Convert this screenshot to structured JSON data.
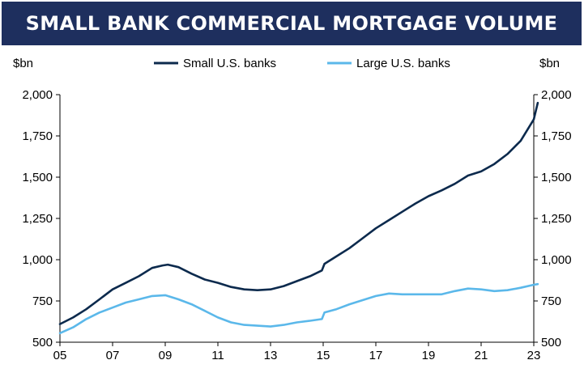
{
  "banner": {
    "title": "SMALL BANK COMMERCIAL MORTGAGE VOLUME"
  },
  "chart_data": {
    "type": "line",
    "title": "SMALL BANK COMMERCIAL MORTGAGE VOLUME",
    "ylabel_left": "$bn",
    "ylabel_right": "$bn",
    "xlim": [
      2005,
      2023
    ],
    "ylim": [
      500,
      2000
    ],
    "xticks": [
      2005,
      2007,
      2009,
      2011,
      2013,
      2015,
      2017,
      2019,
      2021,
      2023
    ],
    "xtick_labels": [
      "05",
      "07",
      "09",
      "11",
      "13",
      "15",
      "17",
      "19",
      "21",
      "23"
    ],
    "yticks": [
      500,
      750,
      1000,
      1250,
      1500,
      1750,
      2000
    ],
    "ytick_labels": [
      "500",
      "750",
      "1,000",
      "1,250",
      "1,500",
      "1,750",
      "2,000"
    ],
    "grid": false,
    "legend_position": "top-center",
    "series": [
      {
        "name": "Small U.S. banks",
        "color": "#0c2a4d",
        "points": [
          [
            2005.0,
            610
          ],
          [
            2005.5,
            650
          ],
          [
            2006.0,
            700
          ],
          [
            2006.5,
            760
          ],
          [
            2007.0,
            820
          ],
          [
            2007.5,
            860
          ],
          [
            2008.0,
            900
          ],
          [
            2008.5,
            950
          ],
          [
            2008.9,
            965
          ],
          [
            2009.1,
            970
          ],
          [
            2009.5,
            955
          ],
          [
            2010.0,
            915
          ],
          [
            2010.5,
            880
          ],
          [
            2011.0,
            860
          ],
          [
            2011.5,
            835
          ],
          [
            2012.0,
            820
          ],
          [
            2012.5,
            815
          ],
          [
            2013.0,
            820
          ],
          [
            2013.5,
            840
          ],
          [
            2014.0,
            870
          ],
          [
            2014.5,
            900
          ],
          [
            2014.95,
            935
          ],
          [
            2015.05,
            975
          ],
          [
            2015.5,
            1020
          ],
          [
            2016.0,
            1070
          ],
          [
            2016.5,
            1130
          ],
          [
            2017.0,
            1190
          ],
          [
            2017.5,
            1240
          ],
          [
            2018.0,
            1290
          ],
          [
            2018.5,
            1340
          ],
          [
            2019.0,
            1385
          ],
          [
            2019.5,
            1420
          ],
          [
            2020.0,
            1460
          ],
          [
            2020.5,
            1510
          ],
          [
            2021.0,
            1535
          ],
          [
            2021.5,
            1580
          ],
          [
            2022.0,
            1640
          ],
          [
            2022.5,
            1720
          ],
          [
            2023.0,
            1850
          ],
          [
            2023.15,
            1950
          ]
        ]
      },
      {
        "name": "Large U.S. banks",
        "color": "#5bb8ea",
        "points": [
          [
            2005.0,
            555
          ],
          [
            2005.5,
            590
          ],
          [
            2006.0,
            640
          ],
          [
            2006.5,
            680
          ],
          [
            2007.0,
            710
          ],
          [
            2007.5,
            740
          ],
          [
            2008.0,
            760
          ],
          [
            2008.5,
            780
          ],
          [
            2009.0,
            785
          ],
          [
            2009.5,
            760
          ],
          [
            2010.0,
            730
          ],
          [
            2010.5,
            690
          ],
          [
            2011.0,
            650
          ],
          [
            2011.5,
            620
          ],
          [
            2012.0,
            605
          ],
          [
            2012.5,
            600
          ],
          [
            2013.0,
            595
          ],
          [
            2013.5,
            605
          ],
          [
            2014.0,
            620
          ],
          [
            2014.5,
            630
          ],
          [
            2014.95,
            640
          ],
          [
            2015.05,
            680
          ],
          [
            2015.5,
            700
          ],
          [
            2016.0,
            730
          ],
          [
            2016.5,
            755
          ],
          [
            2017.0,
            780
          ],
          [
            2017.5,
            795
          ],
          [
            2018.0,
            790
          ],
          [
            2018.5,
            790
          ],
          [
            2019.0,
            790
          ],
          [
            2019.5,
            790
          ],
          [
            2020.0,
            810
          ],
          [
            2020.5,
            825
          ],
          [
            2021.0,
            820
          ],
          [
            2021.5,
            810
          ],
          [
            2022.0,
            815
          ],
          [
            2022.5,
            830
          ],
          [
            2023.0,
            848
          ],
          [
            2023.15,
            852
          ]
        ]
      }
    ]
  }
}
